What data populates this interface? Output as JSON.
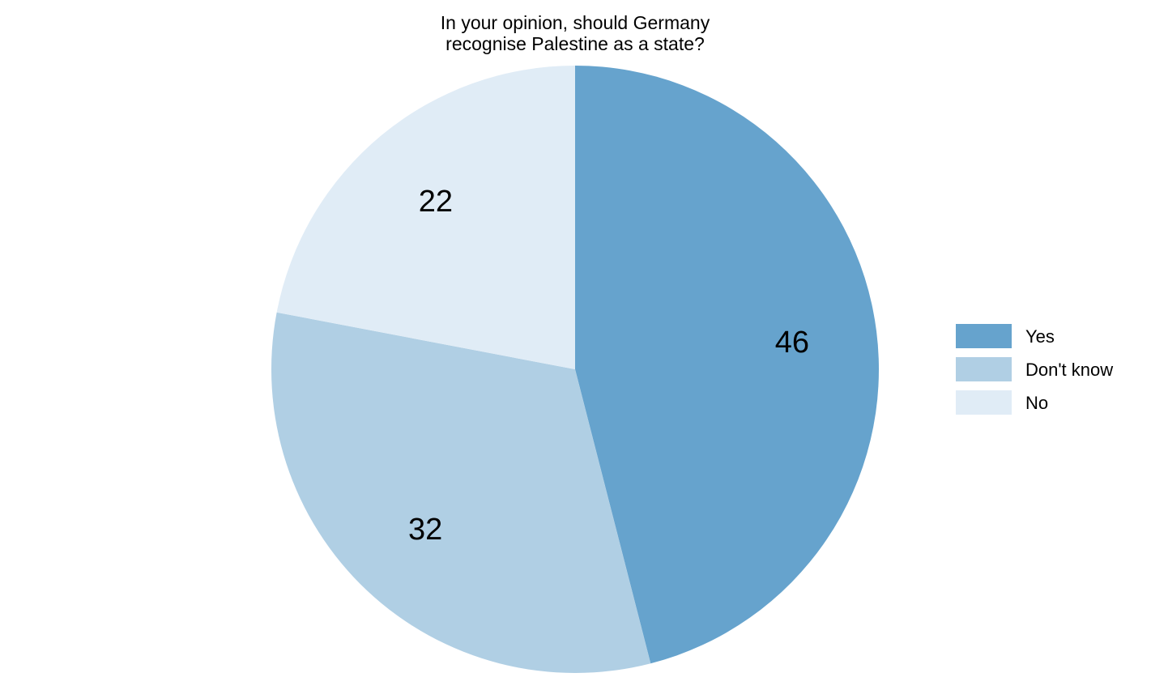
{
  "chart_data": {
    "type": "pie",
    "title_lines": [
      "In your opinion, should Germany",
      "recognise Palestine as a state?"
    ],
    "slices": [
      {
        "label": "Yes",
        "value": 46,
        "display": "46",
        "color": "#66a3cd"
      },
      {
        "label": "Don't know",
        "value": 32,
        "display": "32",
        "color": "#b0cfe4"
      },
      {
        "label": "No",
        "value": 22,
        "display": "22",
        "color": "#e0ecf6"
      }
    ],
    "start": "12 o'clock",
    "direction": "clockwise",
    "legend_position": "right"
  }
}
